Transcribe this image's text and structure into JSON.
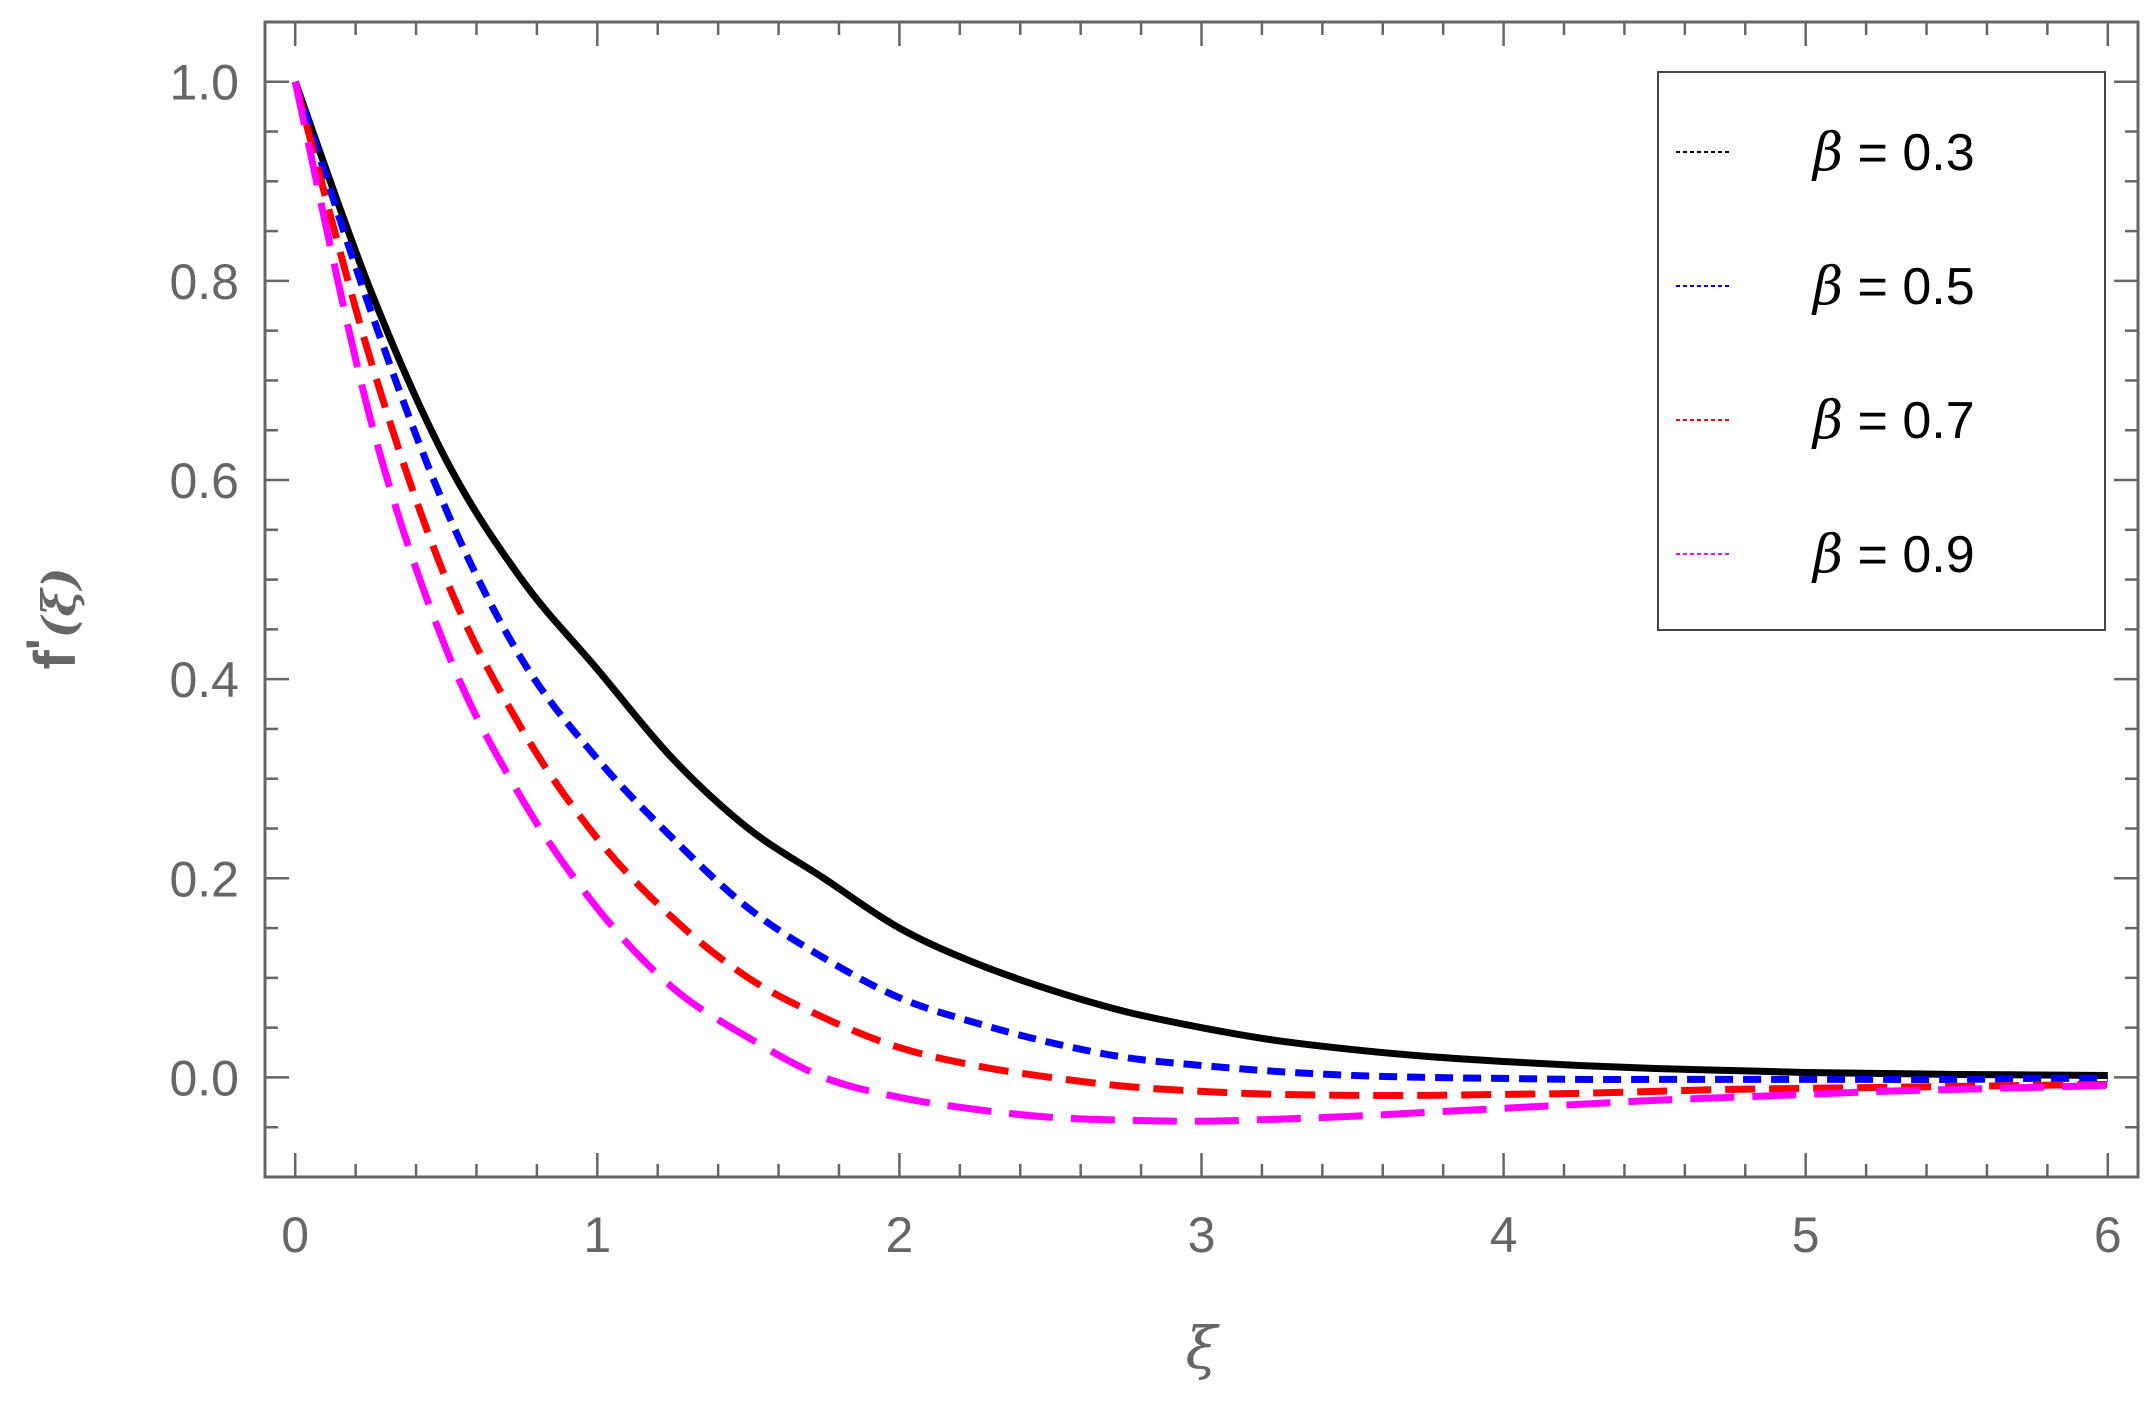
{
  "chart_data": {
    "type": "line",
    "title": "",
    "xlabel": "ξ",
    "ylabel": "f'(ξ)",
    "ylabel_main": "f",
    "ylabel_prime": "'",
    "ylabel_arg": "(ξ)",
    "xlim": [
      -0.1,
      6.1
    ],
    "ylim": [
      -0.1,
      1.06
    ],
    "xticks": [
      0,
      1,
      2,
      3,
      4,
      5,
      6
    ],
    "xtick_labels": [
      "0",
      "1",
      "2",
      "3",
      "4",
      "5",
      "6"
    ],
    "yticks": [
      0.0,
      0.2,
      0.4,
      0.6,
      0.8,
      1.0
    ],
    "ytick_labels": [
      "0.0",
      "0.2",
      "0.4",
      "0.6",
      "0.8",
      "1.0"
    ],
    "grid": false,
    "legend_position": "top-right",
    "x": [
      0,
      0.25,
      0.5,
      0.75,
      1.0,
      1.25,
      1.5,
      1.75,
      2.0,
      2.25,
      2.5,
      2.75,
      3.0,
      3.25,
      3.5,
      3.75,
      4.0,
      4.25,
      4.5,
      4.75,
      5.0,
      5.25,
      5.5,
      5.75,
      6.0
    ],
    "series": [
      {
        "name": "β = 0.3",
        "legend_symbol": "β",
        "legend_value": " = 0.3",
        "color": "#000000",
        "dash": "none",
        "values": [
          1.0,
          0.79,
          0.62,
          0.5,
          0.41,
          0.32,
          0.25,
          0.2,
          0.15,
          0.115,
          0.088,
          0.066,
          0.05,
          0.037,
          0.028,
          0.021,
          0.016,
          0.012,
          0.009,
          0.007,
          0.005,
          0.004,
          0.003,
          0.0025,
          0.002
        ]
      },
      {
        "name": "β = 0.5",
        "legend_symbol": "β",
        "legend_value": " = 0.5",
        "color": "#0000ff",
        "dash": "18,10",
        "values": [
          1.0,
          0.77,
          0.57,
          0.42,
          0.32,
          0.24,
          0.17,
          0.12,
          0.08,
          0.055,
          0.035,
          0.02,
          0.012,
          0.006,
          0.002,
          0.0,
          -0.001,
          -0.002,
          -0.002,
          -0.002,
          -0.002,
          -0.002,
          -0.002,
          -0.001,
          -0.001
        ]
      },
      {
        "name": "β = 0.7",
        "legend_symbol": "β",
        "legend_value": " = 0.7",
        "color": "#ff0000",
        "dash": "30,14",
        "values": [
          1.0,
          0.72,
          0.5,
          0.35,
          0.24,
          0.16,
          0.1,
          0.06,
          0.03,
          0.012,
          0.0,
          -0.009,
          -0.014,
          -0.017,
          -0.018,
          -0.018,
          -0.017,
          -0.016,
          -0.014,
          -0.012,
          -0.011,
          -0.01,
          -0.009,
          -0.008,
          -0.007
        ]
      },
      {
        "name": "β = 0.9",
        "legend_symbol": "β",
        "legend_value": " = 0.9",
        "color": "#ff00ff",
        "dash": "44,18",
        "values": [
          1.0,
          0.66,
          0.43,
          0.28,
          0.17,
          0.09,
          0.04,
          0.0,
          -0.02,
          -0.032,
          -0.04,
          -0.043,
          -0.044,
          -0.042,
          -0.039,
          -0.035,
          -0.031,
          -0.027,
          -0.023,
          -0.02,
          -0.017,
          -0.014,
          -0.012,
          -0.01,
          -0.008
        ]
      }
    ]
  }
}
